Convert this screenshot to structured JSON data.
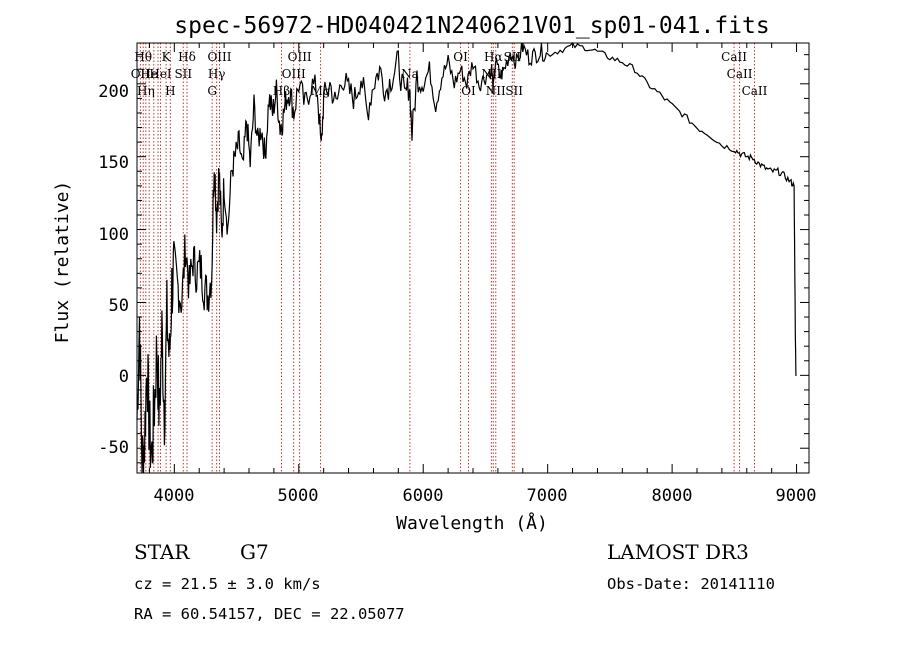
{
  "chart_data": {
    "type": "line",
    "title": "spec-56972-HD040421N240621V01_sp01-041.fits",
    "xlabel": "Wavelength (Å)",
    "ylabel": "Flux (relative)",
    "xlim": [
      3700,
      9100
    ],
    "ylim": [
      -67,
      228
    ],
    "x_ticks": [
      4000,
      5000,
      6000,
      7000,
      8000,
      9000
    ],
    "y_ticks": [
      -50,
      0,
      50,
      100,
      150,
      200
    ],
    "x_tick_labels": [
      "4000",
      "5000",
      "6000",
      "7000",
      "8000",
      "9000"
    ],
    "y_tick_labels": [
      "-50",
      "0",
      "50",
      "100",
      "150",
      "200"
    ],
    "series": [
      {
        "name": "spectrum",
        "color": "#000000",
        "x": [
          3700,
          3720,
          3740,
          3760,
          3780,
          3800,
          3820,
          3840,
          3860,
          3880,
          3900,
          3920,
          3940,
          3960,
          3980,
          4000,
          4030,
          4060,
          4090,
          4120,
          4150,
          4180,
          4210,
          4240,
          4270,
          4300,
          4320,
          4340,
          4360,
          4380,
          4400,
          4430,
          4460,
          4490,
          4520,
          4550,
          4580,
          4610,
          4640,
          4670,
          4700,
          4730,
          4760,
          4790,
          4820,
          4850,
          4870,
          4900,
          4930,
          4960,
          5000,
          5050,
          5100,
          5150,
          5180,
          5200,
          5250,
          5300,
          5350,
          5400,
          5450,
          5500,
          5550,
          5600,
          5650,
          5700,
          5750,
          5800,
          5850,
          5890,
          5910,
          5950,
          6000,
          6050,
          6100,
          6150,
          6200,
          6250,
          6300,
          6350,
          6400,
          6450,
          6500,
          6550,
          6563,
          6580,
          6620,
          6650,
          6700,
          6750,
          6800,
          6850,
          6900,
          6950,
          7000,
          7100,
          7200,
          7300,
          7400,
          7500,
          7600,
          7700,
          7800,
          7900,
          8000,
          8100,
          8200,
          8300,
          8400,
          8500,
          8550,
          8600,
          8650,
          8700,
          8750,
          8800,
          8850,
          8900,
          8950,
          8980,
          8990,
          8995,
          9000
        ],
        "y": [
          -30,
          40,
          -60,
          -45,
          10,
          -40,
          -55,
          -20,
          20,
          -30,
          30,
          -25,
          40,
          10,
          60,
          75,
          60,
          50,
          90,
          60,
          80,
          70,
          75,
          60,
          55,
          70,
          150,
          110,
          140,
          95,
          130,
          100,
          140,
          150,
          160,
          140,
          175,
          145,
          185,
          160,
          170,
          150,
          190,
          180,
          195,
          170,
          175,
          190,
          195,
          180,
          200,
          185,
          200,
          195,
          155,
          190,
          200,
          185,
          205,
          195,
          190,
          205,
          180,
          200,
          210,
          195,
          205,
          215,
          190,
          200,
          165,
          205,
          200,
          210,
          185,
          205,
          215,
          200,
          210,
          200,
          215,
          200,
          205,
          210,
          195,
          215,
          205,
          210,
          222,
          215,
          225,
          218,
          220,
          222,
          220,
          223,
          226,
          225,
          222,
          218,
          215,
          210,
          200,
          193,
          185,
          178,
          170,
          165,
          158,
          155,
          152,
          150,
          149,
          145,
          142,
          140,
          140,
          137,
          133,
          130,
          30,
          0,
          0
        ]
      }
    ],
    "spectral_lines": [
      {
        "wavelength": 3727,
        "label": "OII",
        "row": 2
      },
      {
        "wavelength": 3750,
        "label": "Hθ",
        "row": 1
      },
      {
        "wavelength": 3771,
        "label": "Hη",
        "row": 3
      },
      {
        "wavelength": 3798,
        "label": "He",
        "row": 2
      },
      {
        "wavelength": 3835,
        "label": "",
        "row": 0
      },
      {
        "wavelength": 3869,
        "label": "",
        "row": 0
      },
      {
        "wavelength": 3889,
        "label": "HeI",
        "row": 2
      },
      {
        "wavelength": 3934,
        "label": "K",
        "row": 1
      },
      {
        "wavelength": 3968,
        "label": "H",
        "row": 3
      },
      {
        "wavelength": 4072,
        "label": "SII",
        "row": 2
      },
      {
        "wavelength": 4102,
        "label": "Hδ",
        "row": 1
      },
      {
        "wavelength": 4304,
        "label": "G",
        "row": 3
      },
      {
        "wavelength": 4340,
        "label": "Hγ",
        "row": 2
      },
      {
        "wavelength": 4363,
        "label": "OIII",
        "row": 1
      },
      {
        "wavelength": 4861,
        "label": "Hβ",
        "row": 3
      },
      {
        "wavelength": 4959,
        "label": "OIII",
        "row": 2
      },
      {
        "wavelength": 5007,
        "label": "OIII",
        "row": 1
      },
      {
        "wavelength": 5175,
        "label": "Mg",
        "row": 3
      },
      {
        "wavelength": 5893,
        "label": "Na",
        "row": 2
      },
      {
        "wavelength": 6300,
        "label": "OI",
        "row": 1
      },
      {
        "wavelength": 6364,
        "label": "OI",
        "row": 3
      },
      {
        "wavelength": 6548,
        "label": "NII",
        "row": 2
      },
      {
        "wavelength": 6563,
        "label": "Hα",
        "row": 1
      },
      {
        "wavelength": 6583,
        "label": "NII",
        "row": 3
      },
      {
        "wavelength": 6716,
        "label": "SII",
        "row": 1
      },
      {
        "wavelength": 6731,
        "label": "SII",
        "row": 3
      },
      {
        "wavelength": 8498,
        "label": "CaII",
        "row": 1
      },
      {
        "wavelength": 8542,
        "label": "CaII",
        "row": 2
      },
      {
        "wavelength": 8662,
        "label": "CaII",
        "row": 3
      }
    ]
  },
  "info": {
    "object_type": "STAR",
    "subclass": "G7",
    "survey": "LAMOST DR3",
    "redshift": "cz = 21.5 ± 3.0 km/s",
    "obs_date": "Obs-Date: 20141110",
    "coords": "RA =  60.54157, DEC =  22.05077"
  },
  "colors": {
    "spectrum": "#000000",
    "lines": "#c0392b",
    "background": "#ffffff"
  }
}
